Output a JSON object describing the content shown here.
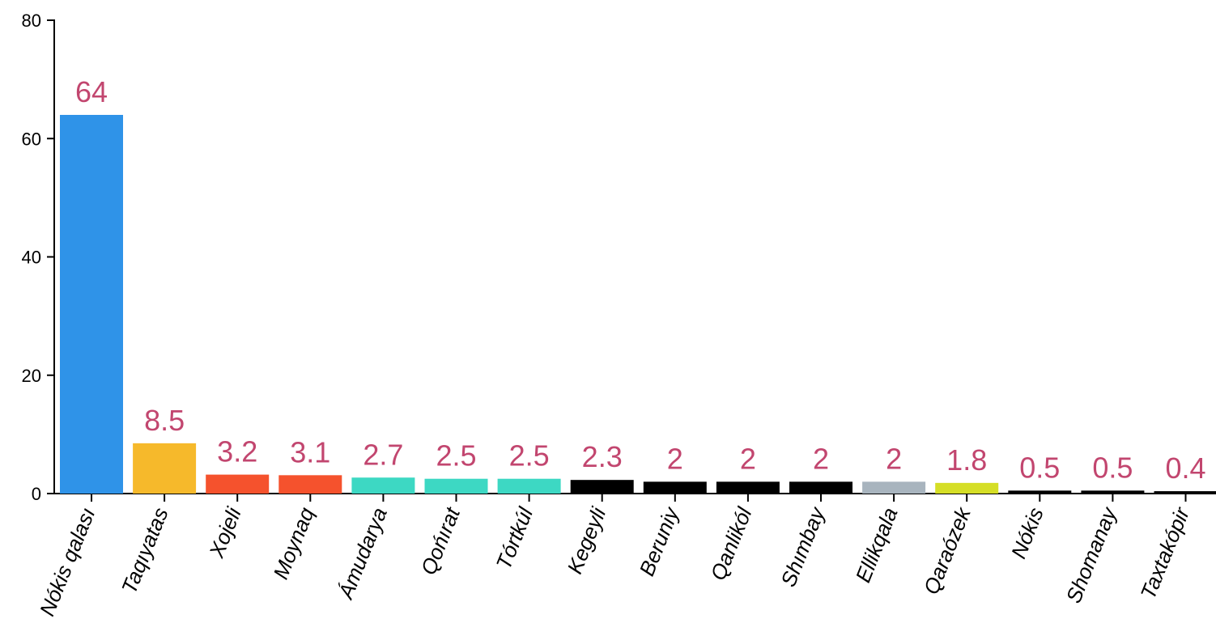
{
  "chart_data": {
    "type": "bar",
    "categories": [
      "Nókis qalası",
      "Taqıyatas",
      "Xojeli",
      "Moynaq",
      "Ámudarya",
      "Qońırat",
      "Tórtkúl",
      "Kegeyli",
      "Beruniy",
      "Qanlikól",
      "Shımbay",
      "Ellikqala",
      "Qaraózek",
      "Nókis",
      "Shomanay",
      "Taxtakópir"
    ],
    "values": [
      64,
      8.5,
      3.2,
      3.1,
      2.7,
      2.5,
      2.5,
      2.3,
      2,
      2,
      2,
      2,
      1.8,
      0.5,
      0.5,
      0.4
    ],
    "value_labels": [
      "64",
      "8.5",
      "3.2",
      "3.1",
      "2.7",
      "2.5",
      "2.5",
      "2.3",
      "2",
      "2",
      "2",
      "2",
      "1.8",
      "0.5",
      "0.5",
      "0.4"
    ],
    "colors": [
      "#2f93e8",
      "#f6b92b",
      "#f5522d",
      "#f5522d",
      "#3dd8c3",
      "#3dd8c3",
      "#3dd8c3",
      "#000000",
      "#000000",
      "#000000",
      "#000000",
      "#a8b4be",
      "#d5de26",
      "#000000",
      "#000000",
      "#000000"
    ],
    "value_label_color": "#c2466f",
    "ylim": [
      0,
      80
    ],
    "y_ticks": [
      "0",
      "20",
      "40",
      "60",
      "80"
    ],
    "grid": false,
    "legend": "none",
    "title": "",
    "xlabel": "",
    "ylabel": ""
  }
}
